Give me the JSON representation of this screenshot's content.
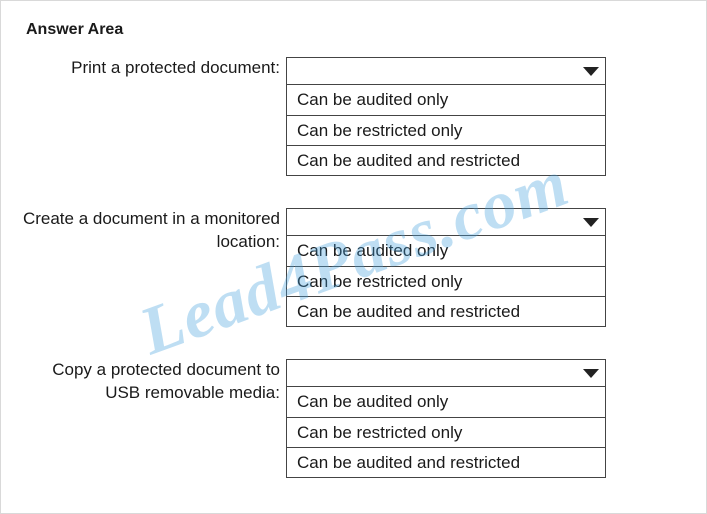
{
  "title": "Answer Area",
  "colors": {
    "background": "#ffffff",
    "text": "#1a1a1a",
    "border": "#444444",
    "chevron": "#222222",
    "outer_border": "#d9d9d9",
    "watermark": "rgba(70,160,220,0.35)"
  },
  "typography": {
    "title_fontsize": 16,
    "title_weight": 700,
    "body_fontsize": 17,
    "body_weight": 400,
    "watermark_fontsize": 68,
    "watermark_weight": 700,
    "watermark_style": "italic"
  },
  "watermark_text": "Lead4Pass.com",
  "rows": [
    {
      "label": "Print a protected document:",
      "options": [
        "Can be audited only",
        "Can be restricted only",
        "Can be audited and restricted"
      ]
    },
    {
      "label": "Create a document in a monitored location:",
      "options": [
        "Can be audited only",
        "Can be restricted only",
        "Can be audited and restricted"
      ]
    },
    {
      "label": "Copy a protected document to USB removable media:",
      "options": [
        "Can be audited only",
        "Can be restricted only",
        "Can be audited and restricted"
      ]
    }
  ]
}
